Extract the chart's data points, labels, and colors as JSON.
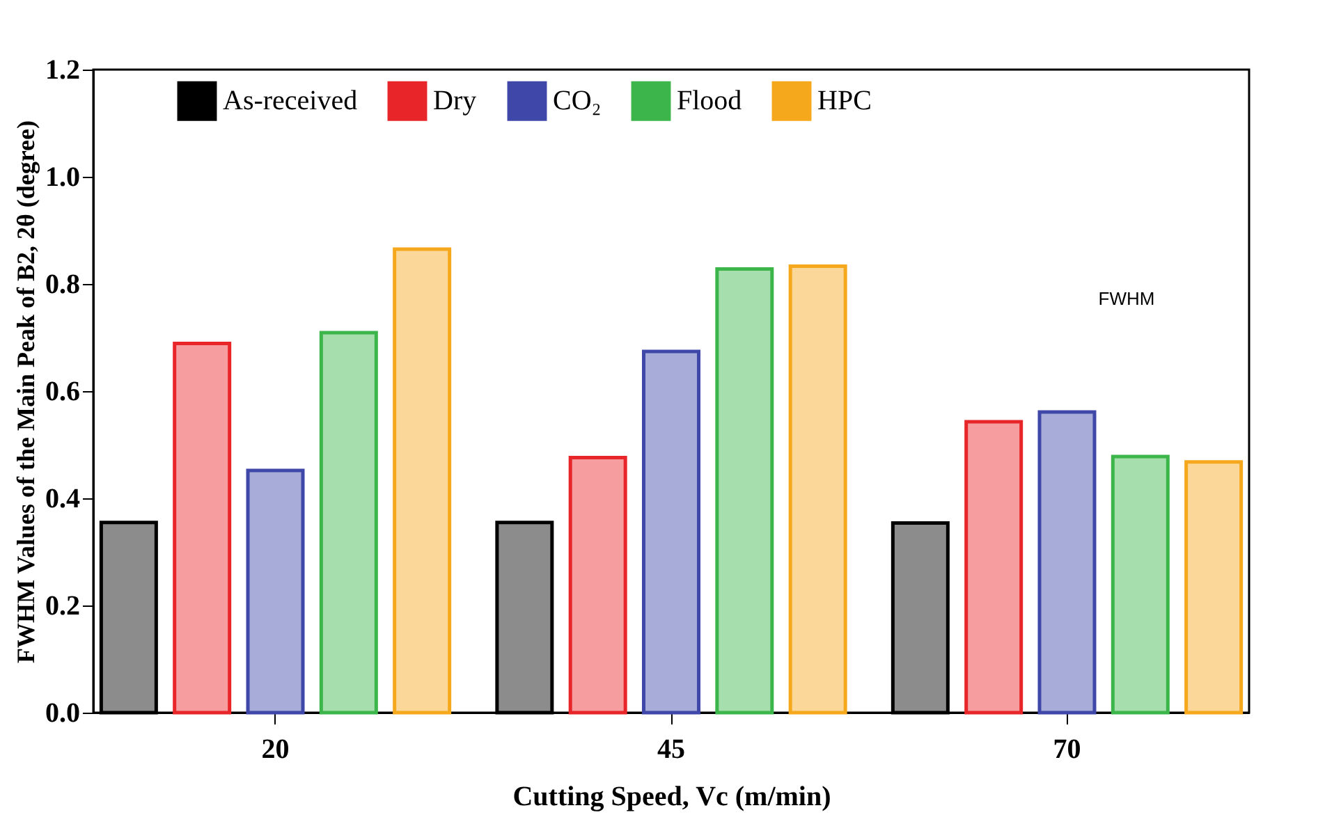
{
  "chart_data": {
    "type": "bar",
    "xlabel": "Cutting Speed, Vc (m/min)",
    "ylabel": "FWHM Values of the Main Peak of B2, 2θ (degree)",
    "categories": [
      "20",
      "45",
      "70"
    ],
    "series": [
      {
        "name": "As-received",
        "color": "#000000",
        "values": [
          0.355,
          0.355,
          0.354
        ]
      },
      {
        "name": "Dry",
        "color": "#e8262a",
        "values": [
          0.689,
          0.476,
          0.543
        ]
      },
      {
        "name": "CO₂",
        "color": "#3f48a8",
        "values": [
          0.452,
          0.674,
          0.561
        ]
      },
      {
        "name": "Flood",
        "color": "#3cb54a",
        "values": [
          0.709,
          0.828,
          0.478
        ]
      },
      {
        "name": "HPC",
        "color": "#f6a81c",
        "values": [
          0.865,
          0.833,
          0.468
        ]
      }
    ],
    "ylim": [
      0,
      1.2
    ],
    "yticks": [
      {
        "value": 0,
        "label": "0.0"
      },
      {
        "value": 0.2,
        "label": "0.2"
      },
      {
        "value": 0.4,
        "label": "0.4"
      },
      {
        "value": 0.6,
        "label": "0.6"
      },
      {
        "value": 0.8,
        "label": "0.8"
      },
      {
        "value": 1.0,
        "label": "1.0"
      },
      {
        "value": 1.2,
        "label": "1.2"
      }
    ],
    "legend": "top",
    "grid": false,
    "annotations": [
      "FWHM"
    ]
  }
}
